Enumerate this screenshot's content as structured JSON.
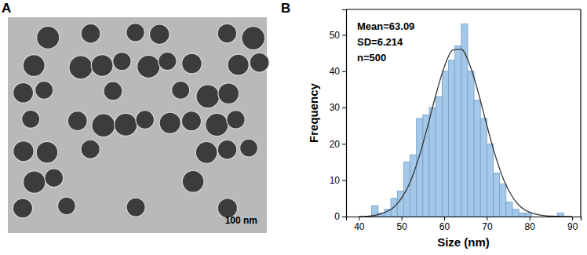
{
  "image_panel": {
    "label": "A",
    "scale_bar": "100 nm"
  },
  "chart_data": {
    "type": "histogram",
    "title": "B",
    "x_label": "Size (nm)",
    "y_label": "Frequency",
    "annotations": [
      "Mean=63.09",
      "SD=6.214",
      "n=500"
    ],
    "bins": [
      43,
      44.5,
      46,
      47.5,
      49,
      50.5,
      52,
      53.5,
      55,
      56.5,
      58,
      59.5,
      61,
      62.5,
      64,
      65.5,
      67,
      68.5,
      70,
      71.5,
      73,
      74.5,
      76,
      77.5,
      79,
      80.5,
      82,
      83.5,
      85,
      86.5,
      88,
      89.5
    ],
    "counts": [
      3,
      1,
      2,
      5,
      7,
      15,
      17,
      27,
      28,
      30,
      33,
      40,
      43,
      47,
      53,
      40,
      32,
      27,
      20,
      12,
      9,
      4,
      2,
      1,
      1,
      0,
      0,
      0,
      0,
      1,
      0
    ],
    "color": "#a6c8e8",
    "series": [
      {
        "type": "line",
        "color": "#333333",
        "x": [
          40,
          42,
          44,
          46,
          48,
          50,
          52,
          54,
          56,
          58,
          60,
          62,
          64,
          66,
          68,
          70,
          72,
          74,
          76,
          78,
          80,
          82,
          84,
          86,
          88,
          90
        ],
        "values": [
          0.0,
          0.1,
          0.4,
          1.1,
          2.4,
          5.1,
          9.4,
          16.0,
          24.3,
          33.3,
          41.1,
          45.8,
          46.0,
          41.7,
          34.1,
          25.1,
          16.7,
          10.0,
          5.4,
          2.6,
          1.2,
          0.5,
          0.2,
          0.1,
          0.0,
          0.0
        ]
      }
    ],
    "xlim": [
      37,
      92
    ],
    "ylim": [
      0,
      57
    ],
    "xticks": [
      40,
      50,
      60,
      70,
      80,
      90
    ],
    "yticks": [
      0,
      10,
      20,
      30,
      40,
      50
    ]
  }
}
